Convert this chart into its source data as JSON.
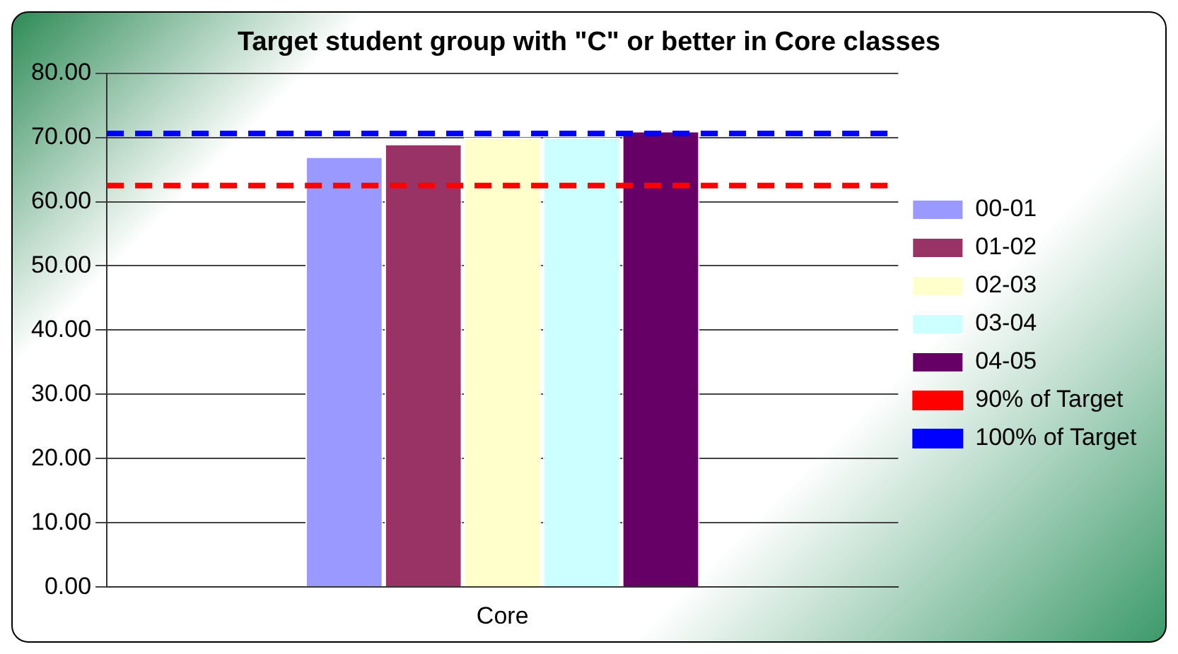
{
  "chart_data": {
    "type": "bar",
    "title": "Target student group with \"C\" or better in Core classes",
    "categories": [
      "Core"
    ],
    "series": [
      {
        "name": "00-01",
        "color": "#9999ff",
        "values": [
          67
        ]
      },
      {
        "name": "01-02",
        "color": "#993366",
        "values": [
          69
        ]
      },
      {
        "name": "02-03",
        "color": "#ffffcc",
        "values": [
          70
        ]
      },
      {
        "name": "03-04",
        "color": "#ccffff",
        "values": [
          70
        ]
      },
      {
        "name": "04-05",
        "color": "#660066",
        "values": [
          71
        ]
      }
    ],
    "ref_lines": [
      {
        "axis": "y",
        "value": 62.5,
        "label": "90% of Target",
        "color": "#ff0000",
        "line_style": "dashed"
      },
      {
        "axis": "y",
        "value": 70.6,
        "label": "100% of Target",
        "color": "#0000ff",
        "line_style": "dashed"
      }
    ],
    "ylim": [
      0,
      80
    ],
    "yticks": [
      {
        "value": 0,
        "label": "0.00"
      },
      {
        "value": 10,
        "label": "10.00"
      },
      {
        "value": 20,
        "label": "20.00"
      },
      {
        "value": 30,
        "label": "30.00"
      },
      {
        "value": 40,
        "label": "40.00"
      },
      {
        "value": 50,
        "label": "50.00"
      },
      {
        "value": 60,
        "label": "60.00"
      },
      {
        "value": 70,
        "label": "70.00"
      },
      {
        "value": 80,
        "label": "80.00"
      }
    ],
    "grid": "y",
    "legend": "right"
  }
}
